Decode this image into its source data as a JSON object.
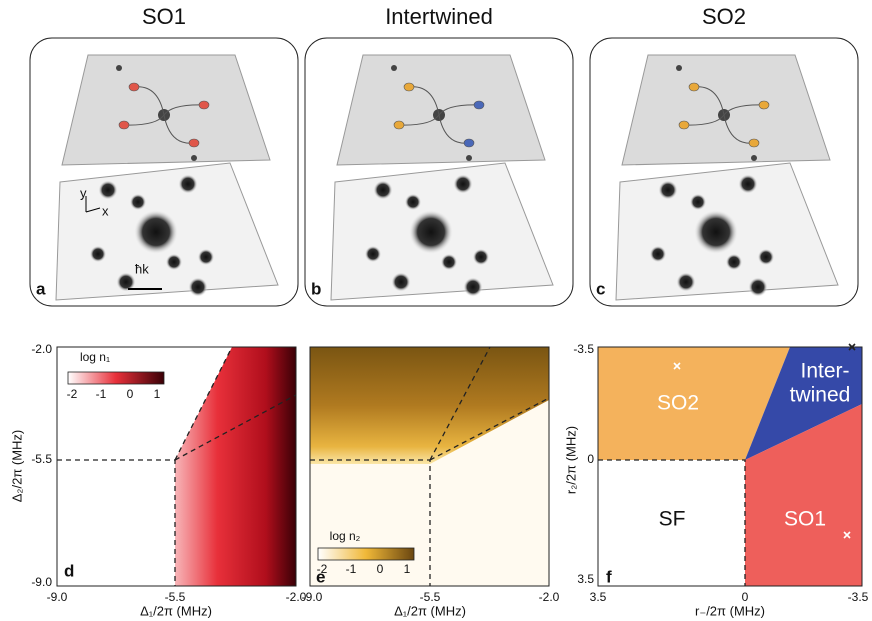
{
  "top_panels": [
    {
      "title": "SO1",
      "letter": "a",
      "scale_label": "ħk",
      "axis_y": "y",
      "axis_x": "x"
    },
    {
      "title": "Intertwined",
      "letter": "b"
    },
    {
      "title": "SO2",
      "letter": "c"
    }
  ],
  "panel_d": {
    "letter": "d",
    "x_label": "Δ₁/2π (MHz)",
    "y_label": "Δ₂/2π (MHz)",
    "xticks": [
      "-9.0",
      "-5.5",
      "-2.0"
    ],
    "yticks": [
      "-2.0",
      "-5.5",
      "-9.0"
    ],
    "colorbar_label": "log n₁",
    "colorbar_ticks": [
      "-2",
      "-1",
      "0",
      "1"
    ]
  },
  "panel_e": {
    "letter": "e",
    "x_label": "Δ₁/2π (MHz)",
    "xticks": [
      "-9.0",
      "-5.5",
      "-2.0"
    ],
    "colorbar_label": "log n₂",
    "colorbar_ticks": [
      "-2",
      "-1",
      "0",
      "1"
    ]
  },
  "panel_f": {
    "letter": "f",
    "x_label": "r₋/2π (MHz)",
    "y_label": "r₂/2π (MHz)",
    "xticks": [
      "3.5",
      "0",
      "-3.5"
    ],
    "yticks": [
      "-3.5",
      "0",
      "3.5"
    ],
    "regions": [
      "SO2",
      "Inter-",
      "twined",
      "SF",
      "SO1"
    ]
  }
}
